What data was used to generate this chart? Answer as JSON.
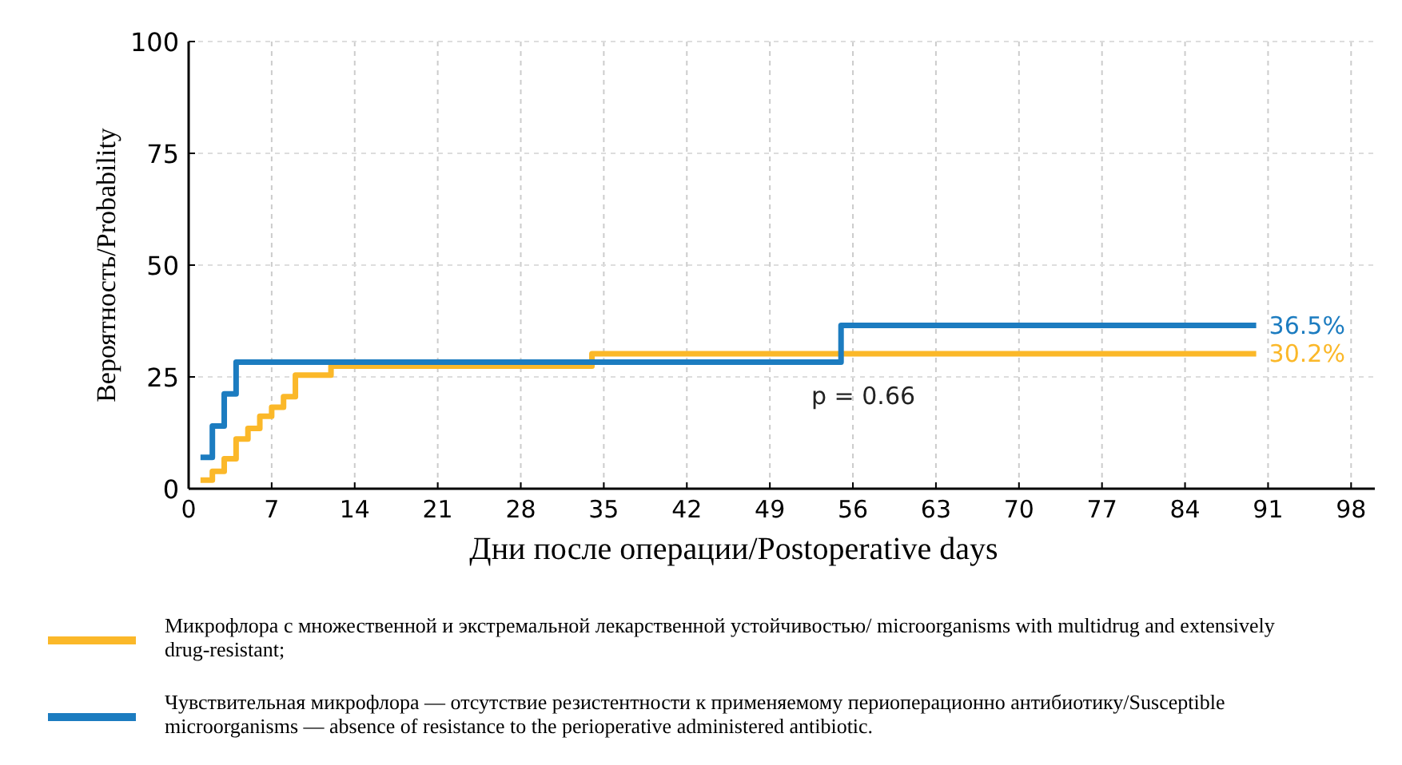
{
  "chart_data": {
    "type": "step",
    "xlabel": "Дни после операции/Postoperative days",
    "ylabel": "Вероятность/Probability",
    "xlim": [
      0,
      100
    ],
    "xticks": [
      0,
      7,
      14,
      21,
      28,
      35,
      42,
      49,
      56,
      63,
      70,
      77,
      84,
      91,
      98
    ],
    "ylim": [
      0,
      100
    ],
    "yticks": [
      0,
      25,
      50,
      75,
      100
    ],
    "grid": true,
    "legend": "bottom",
    "line_style": "solid",
    "series": [
      {
        "name": "Микрофлора с множественной и экстремальной лекарственной устойчивостью/ microorganisms with multidrug and extensively drug-resistant;",
        "color": "#fbb829",
        "x": [
          1,
          2,
          3,
          4,
          5,
          6,
          7,
          8,
          9,
          12,
          34,
          90
        ],
        "values": [
          1.9,
          3.9,
          6.7,
          11.1,
          13.5,
          16.2,
          18.2,
          20.6,
          25.4,
          27.4,
          30.2,
          30.2
        ]
      },
      {
        "name": "Чувствительная микрофлора — отсутствие резистентности к применяемому периоперационно антибиотику/Susceptible microorganisms — absence of resistance to the perioperative administered antibiotic.",
        "color": "#1c7cc0",
        "x": [
          1,
          2,
          3,
          4,
          55,
          90
        ],
        "values": [
          7,
          14,
          21.2,
          28.3,
          36.5,
          36.5
        ]
      }
    ],
    "annotations": [
      {
        "text": "36.5%",
        "x": 90,
        "y": 36.5
      },
      {
        "text": "30.2%",
        "x": 90,
        "y": 30.2
      },
      "p = 0.66"
    ]
  }
}
